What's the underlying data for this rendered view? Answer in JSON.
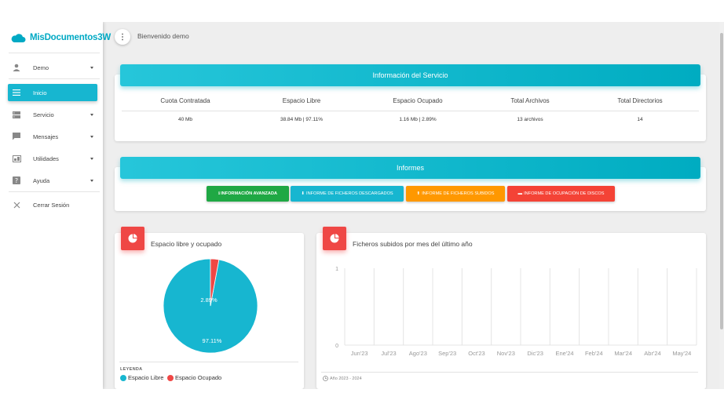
{
  "brand": {
    "name": "MisDocumentos3W"
  },
  "sidebar": {
    "items": [
      {
        "label": "Demo",
        "icon": "user-icon"
      },
      {
        "label": "Inicio",
        "icon": "menu-icon"
      },
      {
        "label": "Servicio",
        "icon": "server-icon"
      },
      {
        "label": "Mensajes",
        "icon": "message-icon"
      },
      {
        "label": "Utilidades",
        "icon": "tools-icon"
      },
      {
        "label": "Ayuda",
        "icon": "help-icon"
      },
      {
        "label": "Cerrar Sesión",
        "icon": "close-icon"
      }
    ]
  },
  "topbar": {
    "welcome": "Bienvenido demo"
  },
  "service": {
    "title": "Información del Servicio",
    "columns": [
      "Cuota Contratada",
      "Espacio Libre",
      "Espacio Ocupado",
      "Total Archivos",
      "Total Directorios"
    ],
    "values": [
      "40 Mb",
      "38.84 Mb | 97.11%",
      "1.16 Mb | 2.89%",
      "13 archivos",
      "14"
    ]
  },
  "reports": {
    "title": "Informes",
    "buttons": [
      {
        "label": "INFORMACIÓN AVANZADA",
        "prefix": "ℹ",
        "color": "#1fa844"
      },
      {
        "label": "INFORME DE FICHEROS DESCARGADOS",
        "prefix": "⬇",
        "color": "#17b6d0"
      },
      {
        "label": "INFORME DE FICHEROS SUBIDOS",
        "prefix": "⬆",
        "color": "#ff9800"
      },
      {
        "label": "INFORME DE OCUPACIÓN DE DISCOS",
        "prefix": "▬",
        "color": "#f44336"
      }
    ]
  },
  "pie_card": {
    "title": "Espacio libre y ocupado",
    "legend_title": "LEYENDA",
    "legend": [
      {
        "label": "Espacio Libre",
        "color": "#17b6d0"
      },
      {
        "label": "Espacio Ocupado",
        "color": "#ef4745"
      }
    ]
  },
  "bar_card": {
    "title": "Ficheros subidos por mes del último año",
    "footer": "Año 2023 - 2024"
  },
  "chart_data": [
    {
      "type": "pie",
      "title": "",
      "categories": [
        "Espacio Libre",
        "Espacio Ocupado"
      ],
      "values": [
        97.11,
        2.89
      ],
      "labels": [
        "97.11%",
        "2.89%"
      ],
      "colors": [
        "#17b6d0",
        "#ef4745"
      ]
    },
    {
      "type": "bar",
      "title": "",
      "categories": [
        "Jun'23",
        "Jul'23",
        "Ago'23",
        "Sep'23",
        "Oct'23",
        "Nov'23",
        "Dic'23",
        "Ene'24",
        "Feb'24",
        "Mar'24",
        "Abr'24",
        "May'24"
      ],
      "values": [
        0,
        0,
        0,
        0,
        0,
        0,
        0,
        0,
        0,
        0,
        0,
        0
      ],
      "ylim": [
        0,
        1
      ],
      "yticks": [
        "0",
        "1"
      ],
      "grid": true
    }
  ]
}
